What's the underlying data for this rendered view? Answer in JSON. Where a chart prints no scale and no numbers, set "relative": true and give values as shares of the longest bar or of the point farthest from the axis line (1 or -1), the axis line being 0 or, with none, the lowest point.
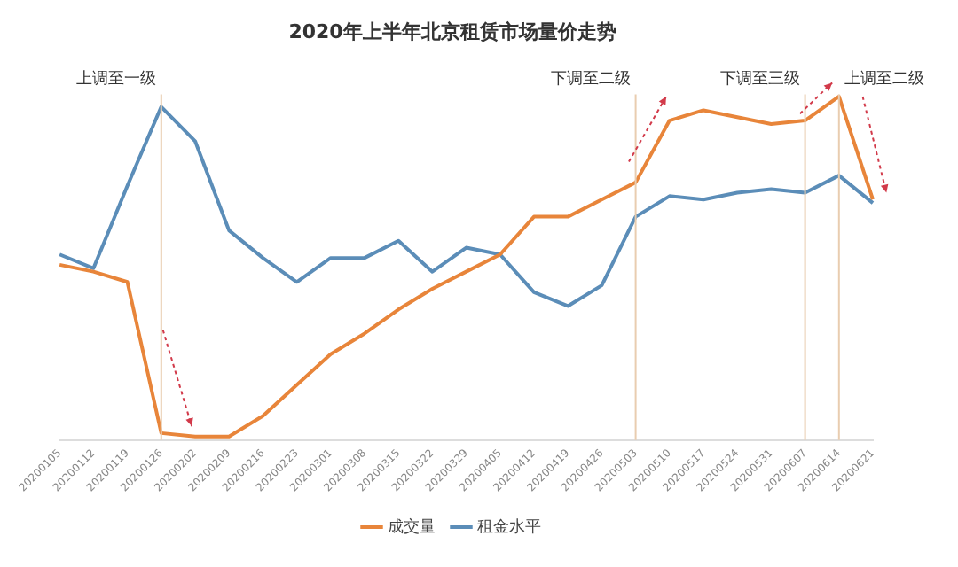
{
  "chart_data": {
    "type": "line",
    "title": "2020年上半年北京租赁市场量价走势",
    "relative": true,
    "categories": [
      "20200105",
      "20200112",
      "20200119",
      "20200126",
      "20200202",
      "20200209",
      "20200216",
      "20200223",
      "20200301",
      "20200308",
      "20200315",
      "20200322",
      "20200329",
      "20200405",
      "20200412",
      "20200419",
      "20200426",
      "20200503",
      "20200510",
      "20200517",
      "20200524",
      "20200531",
      "20200607",
      "20200614",
      "20200621"
    ],
    "series": [
      {
        "name": "成交量",
        "color": "#e8853a",
        "values": [
          0.51,
          0.49,
          0.46,
          0.02,
          0.01,
          0.01,
          0.07,
          0.16,
          0.25,
          0.31,
          0.38,
          0.44,
          0.49,
          0.54,
          0.65,
          0.65,
          0.7,
          0.75,
          0.93,
          0.96,
          0.94,
          0.92,
          0.93,
          1,
          0.7
        ]
      },
      {
        "name": "租金水平",
        "color": "#5b8db8",
        "values": [
          0.54,
          0.5,
          0.74,
          0.97,
          0.87,
          0.61,
          0.53,
          0.46,
          0.53,
          0.53,
          0.58,
          0.49,
          0.56,
          0.54,
          0.43,
          0.39,
          0.45,
          0.65,
          0.71,
          0.7,
          0.72,
          0.73,
          0.72,
          0.77,
          0.69
        ]
      }
    ],
    "ref_lines": [
      {
        "axis": "x",
        "value": "20200126",
        "label": "上调至一级",
        "color": "#e9cdb0"
      },
      {
        "axis": "x",
        "value": "20200503",
        "label": "下调至二级",
        "color": "#e9cdb0"
      },
      {
        "axis": "x",
        "value": "20200607",
        "label": "下调至三级",
        "color": "#e9cdb0"
      },
      {
        "axis": "x",
        "value": "20200614",
        "label": "上调至二级",
        "color": "#e9cdb0"
      }
    ],
    "grid": false,
    "legend": "bottom",
    "marker": "none",
    "line_style": "solid"
  }
}
